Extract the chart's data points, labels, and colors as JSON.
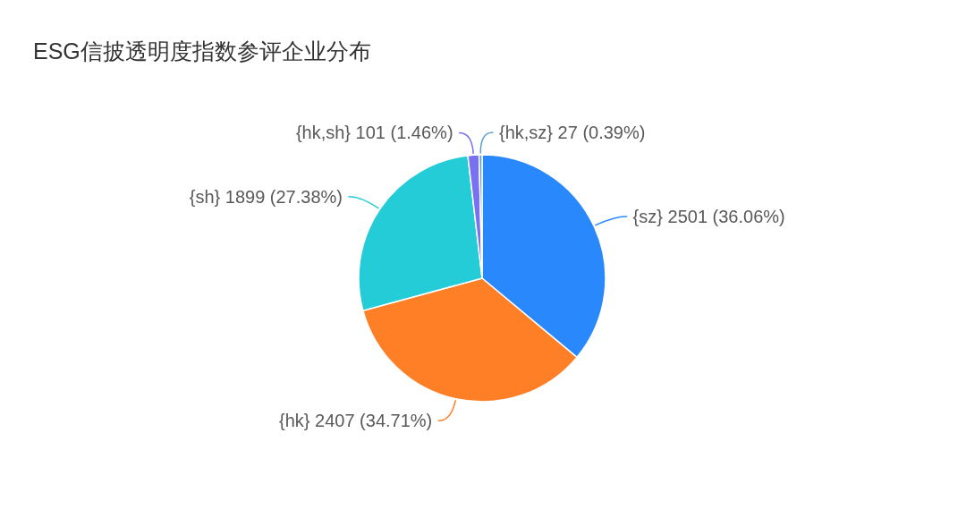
{
  "chart_data": {
    "type": "pie",
    "title": "ESG信披透明度指数参评企业分布",
    "categories": [
      "{sz}",
      "{hk}",
      "{sh}",
      "{hk,sh}",
      "{hk,sz}"
    ],
    "values": [
      2501,
      2407,
      1899,
      101,
      27
    ],
    "colors": [
      "#2a88fd",
      "#ff7f27",
      "#24ccd7",
      "#7a70f2",
      "#5b9fd0"
    ],
    "value_labels": [
      "2501 (36.06%)",
      "2407 (34.71%)",
      "1899 (27.38%)",
      "101 (1.46%)",
      "27 (0.39%)"
    ]
  }
}
